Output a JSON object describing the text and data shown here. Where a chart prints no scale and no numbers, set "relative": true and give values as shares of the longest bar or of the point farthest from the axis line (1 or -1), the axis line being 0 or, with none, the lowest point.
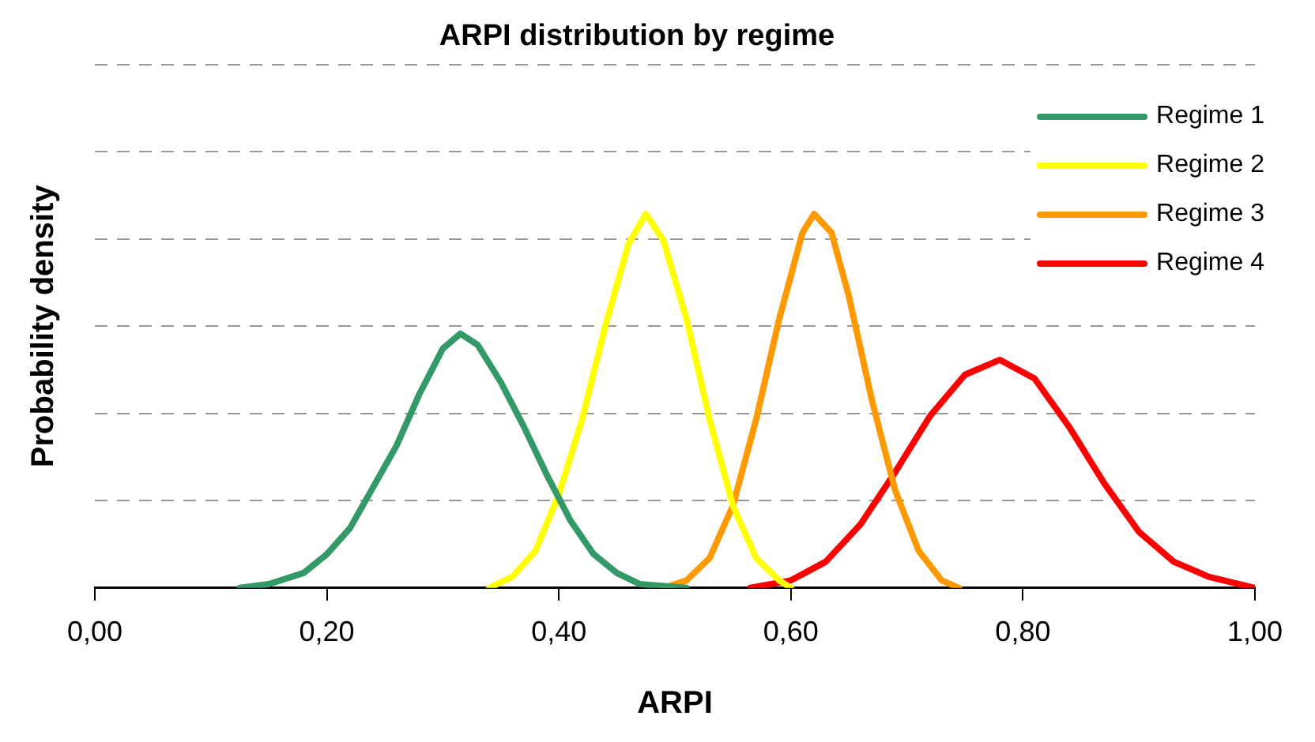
{
  "chart_data": {
    "type": "line",
    "title": "ARPI distribution by regime",
    "xlabel": "ARPI",
    "ylabel": "Probability density",
    "relative": true,
    "xlim": [
      0,
      1
    ],
    "xticks": [
      {
        "value": 0,
        "label": "0,00"
      },
      {
        "value": 0.2,
        "label": "0,20"
      },
      {
        "value": 0.4,
        "label": "0,40"
      },
      {
        "value": 0.6,
        "label": "0,60"
      },
      {
        "value": 0.8,
        "label": "0,80"
      },
      {
        "value": 1,
        "label": "1,00"
      }
    ],
    "grid": "y",
    "legend": "top right",
    "marker": "none",
    "line_style": "solid",
    "series": [
      {
        "name": "Regime 1",
        "color": "#339966",
        "x": [
          0.125,
          0.15,
          0.18,
          0.2,
          0.22,
          0.24,
          0.26,
          0.28,
          0.3,
          0.315,
          0.33,
          0.35,
          0.37,
          0.39,
          0.41,
          0.43,
          0.45,
          0.47,
          0.51
        ],
        "values": [
          0,
          0.01,
          0.04,
          0.09,
          0.16,
          0.27,
          0.38,
          0.52,
          0.64,
          0.68,
          0.65,
          0.55,
          0.43,
          0.3,
          0.18,
          0.09,
          0.04,
          0.01,
          0
        ]
      },
      {
        "name": "Regime 2",
        "color": "#ffff00",
        "x": [
          0.34,
          0.36,
          0.38,
          0.4,
          0.42,
          0.44,
          0.46,
          0.475,
          0.49,
          0.51,
          0.53,
          0.55,
          0.57,
          0.59,
          0.6
        ],
        "values": [
          0,
          0.03,
          0.1,
          0.25,
          0.45,
          0.7,
          0.92,
          1,
          0.93,
          0.72,
          0.45,
          0.22,
          0.08,
          0.02,
          0
        ]
      },
      {
        "name": "Regime 3",
        "color": "#ff9900",
        "x": [
          0.49,
          0.51,
          0.53,
          0.55,
          0.57,
          0.59,
          0.61,
          0.62,
          0.635,
          0.65,
          0.67,
          0.69,
          0.71,
          0.73,
          0.745
        ],
        "values": [
          0,
          0.02,
          0.08,
          0.22,
          0.45,
          0.72,
          0.95,
          1,
          0.95,
          0.78,
          0.5,
          0.26,
          0.1,
          0.02,
          0
        ]
      },
      {
        "name": "Regime 4",
        "color": "#ff0000",
        "x": [
          0.565,
          0.6,
          0.63,
          0.66,
          0.69,
          0.72,
          0.75,
          0.78,
          0.81,
          0.84,
          0.87,
          0.9,
          0.93,
          0.96,
          1
        ],
        "values": [
          0,
          0.02,
          0.07,
          0.17,
          0.31,
          0.46,
          0.57,
          0.61,
          0.56,
          0.43,
          0.28,
          0.15,
          0.07,
          0.03,
          0
        ]
      }
    ]
  }
}
